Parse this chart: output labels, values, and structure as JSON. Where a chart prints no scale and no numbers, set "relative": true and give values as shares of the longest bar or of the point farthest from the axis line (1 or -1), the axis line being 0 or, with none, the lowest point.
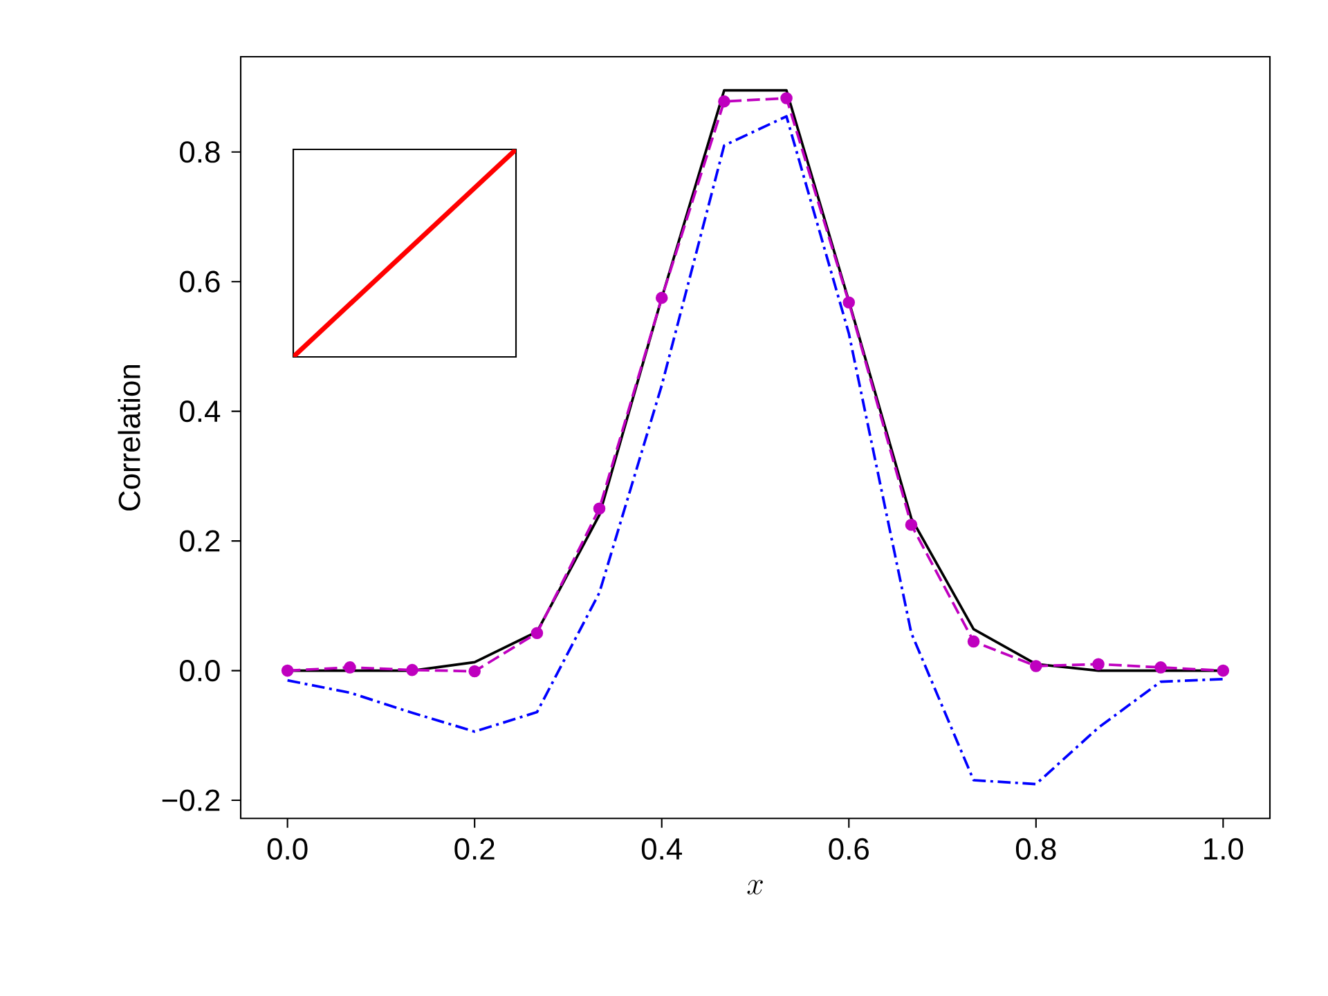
{
  "chart_data": [
    {
      "type": "line",
      "xlabel": "x",
      "ylabel": "Correlation",
      "x": [
        0,
        0.0667,
        0.1333,
        0.2,
        0.2667,
        0.3333,
        0.4,
        0.4667,
        0.5333,
        0.6,
        0.6667,
        0.7333,
        0.8,
        0.8667,
        0.9333,
        1
      ],
      "series": [
        {
          "color": "#000000",
          "line_style": "solid",
          "marker": "none",
          "values": [
            0,
            0,
            0,
            0.013,
            0.06,
            0.24,
            0.575,
            0.895,
            0.895,
            0.57,
            0.235,
            0.064,
            0.01,
            0,
            0,
            0
          ]
        },
        {
          "color": "#0000ff",
          "line_style": "dashdot",
          "marker": "none",
          "values": [
            -0.015,
            -0.034,
            -0.065,
            -0.094,
            -0.064,
            0.12,
            0.44,
            0.81,
            0.855,
            0.52,
            0.058,
            -0.169,
            -0.175,
            -0.088,
            -0.017,
            -0.013
          ]
        },
        {
          "color": "#bf00bf",
          "line_style": "dashed",
          "marker": "circle",
          "values": [
            0,
            0.005,
            0.001,
            -0.001,
            0.058,
            0.25,
            0.575,
            0.878,
            0.883,
            0.568,
            0.225,
            0.045,
            0.007,
            0.01,
            0.005,
            0
          ]
        }
      ],
      "xlim": [
        -0.05,
        1.05
      ],
      "ylim": [
        -0.228,
        0.947
      ],
      "xticks": [
        {
          "value": 0,
          "label": "0.0"
        },
        {
          "value": 0.2,
          "label": "0.2"
        },
        {
          "value": 0.4,
          "label": "0.4"
        },
        {
          "value": 0.6,
          "label": "0.6"
        },
        {
          "value": 0.8,
          "label": "0.8"
        },
        {
          "value": 1,
          "label": "1.0"
        }
      ],
      "yticks": [
        {
          "value": -0.2,
          "label": "−0.2"
        },
        {
          "value": 0,
          "label": "0.0"
        },
        {
          "value": 0.2,
          "label": "0.2"
        },
        {
          "value": 0.4,
          "label": "0.4"
        },
        {
          "value": 0.6,
          "label": "0.6"
        },
        {
          "value": 0.8,
          "label": "0.8"
        }
      ]
    },
    {
      "type": "line",
      "relative": true,
      "categories": [
        null,
        null
      ],
      "series": [
        {
          "color": "#ff0000",
          "values": [
            0,
            1
          ]
        }
      ]
    }
  ]
}
